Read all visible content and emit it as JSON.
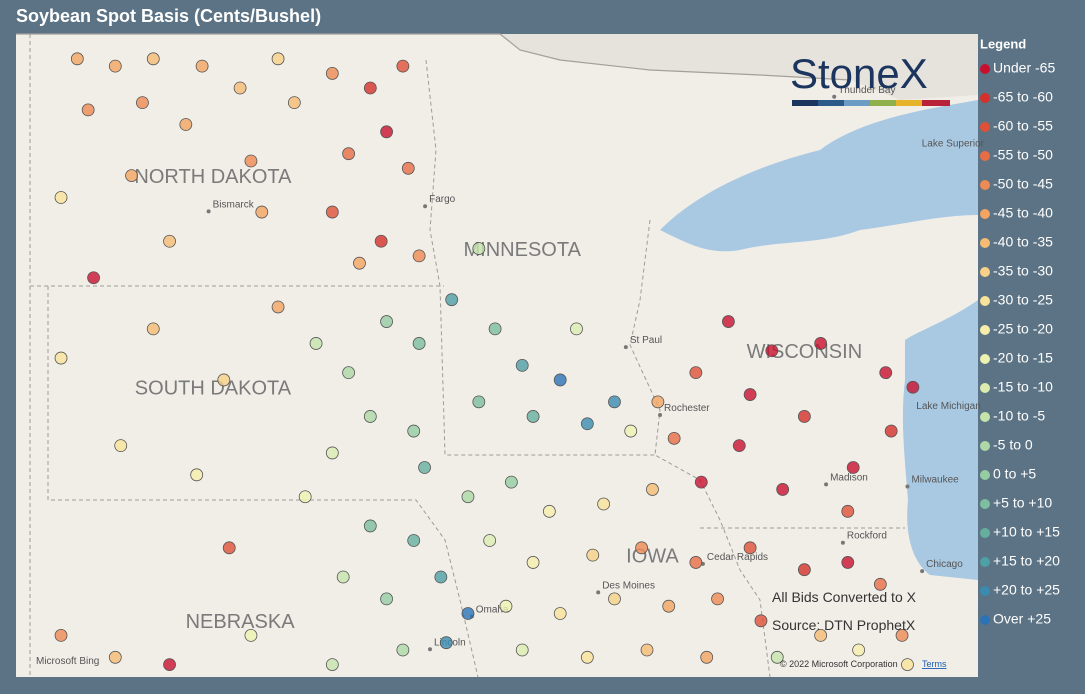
{
  "title": "Soybean Spot Basis (Cents/Bushel)",
  "legend": {
    "title": "Legend",
    "items": [
      {
        "label": "Under -65",
        "color": "#c8102e",
        "to": -65
      },
      {
        "label": "-65 to -60",
        "color": "#d5302b",
        "from": -65,
        "to": -60
      },
      {
        "label": "-60 to -55",
        "color": "#df5036",
        "from": -60,
        "to": -55
      },
      {
        "label": "-55 to -50",
        "color": "#e86d45",
        "from": -55,
        "to": -50
      },
      {
        "label": "-50 to -45",
        "color": "#ee8a53",
        "from": -50,
        "to": -45
      },
      {
        "label": "-45 to -40",
        "color": "#f3a462",
        "from": -45,
        "to": -40
      },
      {
        "label": "-40 to -35",
        "color": "#f6bc74",
        "from": -40,
        "to": -35
      },
      {
        "label": "-35 to -30",
        "color": "#f8d187",
        "from": -35,
        "to": -30
      },
      {
        "label": "-30 to -25",
        "color": "#f9e299",
        "from": -30,
        "to": -25
      },
      {
        "label": "-25 to -20",
        "color": "#f8eeab",
        "from": -25,
        "to": -20
      },
      {
        "label": "-20 to -15",
        "color": "#eef2b1",
        "from": -20,
        "to": -15
      },
      {
        "label": "-15 to -10",
        "color": "#dcecb0",
        "from": -15,
        "to": -10
      },
      {
        "label": "-10 to -5",
        "color": "#c5e3ab",
        "from": -10,
        "to": -5
      },
      {
        "label": "-5 to 0",
        "color": "#add8a6",
        "from": -5,
        "to": 0
      },
      {
        "label": "0 to +5",
        "color": "#95cca1",
        "from": 0,
        "to": 5
      },
      {
        "label": "+5 to +10",
        "color": "#7dbe9c",
        "from": 5,
        "to": 10
      },
      {
        "label": "+10 to +15",
        "color": "#66af9f",
        "from": 10,
        "to": 15
      },
      {
        "label": "+15 to +20",
        "color": "#4f9fa6",
        "from": 15,
        "to": 20
      },
      {
        "label": "+20 to +25",
        "color": "#3a8bb0",
        "from": 20,
        "to": 25
      },
      {
        "label": "Over +25",
        "color": "#2b73b5",
        "from": 25
      }
    ]
  },
  "logo": "StoneX",
  "map_labels": {
    "states": [
      "NORTH DAKOTA",
      "SOUTH DAKOTA",
      "NEBRASKA",
      "MINNESOTA",
      "WISCONSIN",
      "IOWA"
    ],
    "cities": [
      "Bismarck",
      "Fargo",
      "St Paul",
      "Rochester",
      "Madison",
      "Milwaukee",
      "Rockford",
      "Chicago",
      "Cedar Rapids",
      "Des Moines",
      "Omaha",
      "Lincoln",
      "Thunder Bay"
    ],
    "water": [
      "Lake Superior",
      "Lake Michigan"
    ]
  },
  "notes": [
    "All Bids Converted to X",
    "Source: DTN ProphetX"
  ],
  "attribution": {
    "provider": "Microsoft Bing",
    "copyright": "© 2022 Microsoft Corporation",
    "terms": "Terms"
  },
  "points": [
    {
      "lon": -103.2,
      "lat": 48.9,
      "basis": -42
    },
    {
      "lon": -102.5,
      "lat": 48.8,
      "basis": -45
    },
    {
      "lon": -101.8,
      "lat": 48.9,
      "basis": -40
    },
    {
      "lon": -100.9,
      "lat": 48.8,
      "basis": -44
    },
    {
      "lon": -103.0,
      "lat": 48.2,
      "basis": -47
    },
    {
      "lon": -102.0,
      "lat": 48.3,
      "basis": -46
    },
    {
      "lon": -101.2,
      "lat": 48.0,
      "basis": -43
    },
    {
      "lon": -100.2,
      "lat": 48.5,
      "basis": -38
    },
    {
      "lon": -99.5,
      "lat": 48.9,
      "basis": -32
    },
    {
      "lon": -99.2,
      "lat": 48.3,
      "basis": -36
    },
    {
      "lon": -103.5,
      "lat": 47.0,
      "basis": -30
    },
    {
      "lon": -102.2,
      "lat": 47.3,
      "basis": -44
    },
    {
      "lon": -101.5,
      "lat": 46.4,
      "basis": -36
    },
    {
      "lon": -100.0,
      "lat": 47.5,
      "basis": -48
    },
    {
      "lon": -99.8,
      "lat": 46.8,
      "basis": -42
    },
    {
      "lon": -98.5,
      "lat": 48.7,
      "basis": -50
    },
    {
      "lon": -97.8,
      "lat": 48.5,
      "basis": -62
    },
    {
      "lon": -97.2,
      "lat": 48.8,
      "basis": -58
    },
    {
      "lon": -97.5,
      "lat": 47.9,
      "basis": -68
    },
    {
      "lon": -98.2,
      "lat": 47.6,
      "basis": -55
    },
    {
      "lon": -97.1,
      "lat": 47.4,
      "basis": -52
    },
    {
      "lon": -98.5,
      "lat": 46.8,
      "basis": -57
    },
    {
      "lon": -97.6,
      "lat": 46.4,
      "basis": -63
    },
    {
      "lon": -96.9,
      "lat": 46.2,
      "basis": -47
    },
    {
      "lon": -98.0,
      "lat": 46.1,
      "basis": -44
    },
    {
      "lon": -102.9,
      "lat": 45.9,
      "basis": -66
    },
    {
      "lon": -103.5,
      "lat": 44.8,
      "basis": -30
    },
    {
      "lon": -101.8,
      "lat": 45.2,
      "basis": -38
    },
    {
      "lon": -100.5,
      "lat": 44.5,
      "basis": -32
    },
    {
      "lon": -102.4,
      "lat": 43.6,
      "basis": -28
    },
    {
      "lon": -99.5,
      "lat": 45.5,
      "basis": -45
    },
    {
      "lon": -98.8,
      "lat": 45.0,
      "basis": -10
    },
    {
      "lon": -98.2,
      "lat": 44.6,
      "basis": -5
    },
    {
      "lon": -97.5,
      "lat": 45.3,
      "basis": 2
    },
    {
      "lon": -96.9,
      "lat": 45.0,
      "basis": 8
    },
    {
      "lon": -97.8,
      "lat": 44.0,
      "basis": -2
    },
    {
      "lon": -97.0,
      "lat": 43.8,
      "basis": 4
    },
    {
      "lon": -96.8,
      "lat": 43.3,
      "basis": 12
    },
    {
      "lon": -98.5,
      "lat": 43.5,
      "basis": -12
    },
    {
      "lon": -99.0,
      "lat": 42.9,
      "basis": -18
    },
    {
      "lon": -101.0,
      "lat": 43.2,
      "basis": -22
    },
    {
      "lon": -96.3,
      "lat": 45.6,
      "basis": 15
    },
    {
      "lon": -95.8,
      "lat": 46.3,
      "basis": -8
    },
    {
      "lon": -95.5,
      "lat": 45.2,
      "basis": 5
    },
    {
      "lon": -95.0,
      "lat": 44.7,
      "basis": 18
    },
    {
      "lon": -94.3,
      "lat": 44.5,
      "basis": 27
    },
    {
      "lon": -94.8,
      "lat": 44.0,
      "basis": 10
    },
    {
      "lon": -95.8,
      "lat": 44.2,
      "basis": 6
    },
    {
      "lon": -93.8,
      "lat": 43.9,
      "basis": 20
    },
    {
      "lon": -93.3,
      "lat": 44.2,
      "basis": 23
    },
    {
      "lon": -94.0,
      "lat": 45.2,
      "basis": -15
    },
    {
      "lon": -93.0,
      "lat": 43.8,
      "basis": -20
    },
    {
      "lon": -92.5,
      "lat": 44.2,
      "basis": -45
    },
    {
      "lon": -92.2,
      "lat": 43.7,
      "basis": -55
    },
    {
      "lon": -91.8,
      "lat": 44.6,
      "basis": -60
    },
    {
      "lon": -91.2,
      "lat": 45.3,
      "basis": -70
    },
    {
      "lon": -90.4,
      "lat": 44.9,
      "basis": -68
    },
    {
      "lon": -89.5,
      "lat": 45.0,
      "basis": -72
    },
    {
      "lon": -88.3,
      "lat": 44.6,
      "basis": -66
    },
    {
      "lon": -87.8,
      "lat": 44.4,
      "basis": -70
    },
    {
      "lon": -90.8,
      "lat": 44.3,
      "basis": -75
    },
    {
      "lon": -89.8,
      "lat": 44.0,
      "basis": -62
    },
    {
      "lon": -88.9,
      "lat": 43.3,
      "basis": -67
    },
    {
      "lon": -90.2,
      "lat": 43.0,
      "basis": -70
    },
    {
      "lon": -89.0,
      "lat": 42.7,
      "basis": -58
    },
    {
      "lon": -88.2,
      "lat": 43.8,
      "basis": -64
    },
    {
      "lon": -91.0,
      "lat": 43.6,
      "basis": -66
    },
    {
      "lon": -96.0,
      "lat": 42.9,
      "basis": -5
    },
    {
      "lon": -95.2,
      "lat": 43.1,
      "basis": 3
    },
    {
      "lon": -94.5,
      "lat": 42.7,
      "basis": -22
    },
    {
      "lon": -93.5,
      "lat": 42.8,
      "basis": -28
    },
    {
      "lon": -92.6,
      "lat": 43.0,
      "basis": -40
    },
    {
      "lon": -91.7,
      "lat": 43.1,
      "basis": -66
    },
    {
      "lon": -95.6,
      "lat": 42.3,
      "basis": -15
    },
    {
      "lon": -94.8,
      "lat": 42.0,
      "basis": -25
    },
    {
      "lon": -93.7,
      "lat": 42.1,
      "basis": -32
    },
    {
      "lon": -92.8,
      "lat": 42.2,
      "basis": -48
    },
    {
      "lon": -91.8,
      "lat": 42.0,
      "basis": -55
    },
    {
      "lon": -90.8,
      "lat": 42.2,
      "basis": -60
    },
    {
      "lon": -95.3,
      "lat": 41.4,
      "basis": -18
    },
    {
      "lon": -94.3,
      "lat": 41.3,
      "basis": -28
    },
    {
      "lon": -93.3,
      "lat": 41.5,
      "basis": -35
    },
    {
      "lon": -92.3,
      "lat": 41.4,
      "basis": -42
    },
    {
      "lon": -91.4,
      "lat": 41.5,
      "basis": -50
    },
    {
      "lon": -90.6,
      "lat": 41.2,
      "basis": -58
    },
    {
      "lon": -95.0,
      "lat": 40.8,
      "basis": -12
    },
    {
      "lon": -93.8,
      "lat": 40.7,
      "basis": -30
    },
    {
      "lon": -92.7,
      "lat": 40.8,
      "basis": -38
    },
    {
      "lon": -91.6,
      "lat": 40.7,
      "basis": -45
    },
    {
      "lon": -89.8,
      "lat": 41.9,
      "basis": -62
    },
    {
      "lon": -89.0,
      "lat": 42.0,
      "basis": -70
    },
    {
      "lon": -88.4,
      "lat": 41.7,
      "basis": -55
    },
    {
      "lon": -89.5,
      "lat": 41.0,
      "basis": -38
    },
    {
      "lon": -88.8,
      "lat": 40.8,
      "basis": -25
    },
    {
      "lon": -88.0,
      "lat": 41.0,
      "basis": -48
    },
    {
      "lon": -90.3,
      "lat": 40.7,
      "basis": -10
    },
    {
      "lon": -87.9,
      "lat": 40.6,
      "basis": -30
    },
    {
      "lon": -97.8,
      "lat": 42.5,
      "basis": 5
    },
    {
      "lon": -97.0,
      "lat": 42.3,
      "basis": 10
    },
    {
      "lon": -96.5,
      "lat": 41.8,
      "basis": 15
    },
    {
      "lon": -97.5,
      "lat": 41.5,
      "basis": 2
    },
    {
      "lon": -98.3,
      "lat": 41.8,
      "basis": -8
    },
    {
      "lon": -96.4,
      "lat": 40.9,
      "basis": 22
    },
    {
      "lon": -97.2,
      "lat": 40.8,
      "basis": -2
    },
    {
      "lon": -98.5,
      "lat": 40.6,
      "basis": -10
    },
    {
      "lon": -100.0,
      "lat": 41.0,
      "basis": -20
    },
    {
      "lon": -102.5,
      "lat": 40.7,
      "basis": -40
    },
    {
      "lon": -103.5,
      "lat": 41.0,
      "basis": -48
    },
    {
      "lon": -101.5,
      "lat": 40.6,
      "basis": -70
    },
    {
      "lon": -100.4,
      "lat": 42.2,
      "basis": -60
    },
    {
      "lon": -96.0,
      "lat": 41.3,
      "basis": 26
    }
  ]
}
